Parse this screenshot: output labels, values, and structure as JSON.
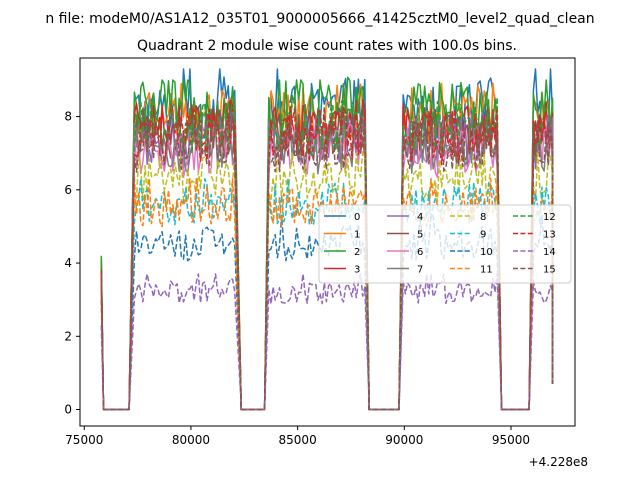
{
  "chart_data": {
    "type": "line",
    "suptitle": "n file: modeM0/AS1A12_035T01_9000005666_41425cztM0_level2_quad_clean",
    "title": "Quadrant 2 module wise count rates with 100.0s bins.",
    "xlabel": "",
    "ylabel": "",
    "x_offset_label": "+4.228e8",
    "xlim": [
      74800,
      98000
    ],
    "ylim": [
      -0.45,
      9.6
    ],
    "x_ticks": [
      75000,
      80000,
      85000,
      90000,
      95000
    ],
    "x_tick_labels": [
      "75000",
      "80000",
      "85000",
      "90000",
      "95000"
    ],
    "y_ticks": [
      0,
      2,
      4,
      6,
      8
    ],
    "y_tick_labels": [
      "0",
      "2",
      "4",
      "6",
      "8"
    ],
    "segments": [
      {
        "start": 75800,
        "drop_end": 75900,
        "zero_end": 77150,
        "rise_end": 77350,
        "high_end": 82050,
        "fall_end": 82350
      },
      {
        "start": 82350,
        "drop_end": 82350,
        "zero_end": 83450,
        "rise_end": 83650,
        "high_end": 88150,
        "fall_end": 88350
      },
      {
        "start": 88350,
        "drop_end": 88350,
        "zero_end": 89750,
        "rise_end": 89950,
        "high_end": 94350,
        "fall_end": 94550
      },
      {
        "start": 94550,
        "drop_end": 94550,
        "zero_end": 95850,
        "rise_end": 96050,
        "high_end": 96950,
        "fall_end": 96950
      }
    ],
    "series": [
      {
        "name": "0",
        "color": "#1f77b4",
        "style": "solid",
        "level": 8.1,
        "peak": 9.3,
        "start_value": 4.1
      },
      {
        "name": "1",
        "color": "#ff7f0e",
        "style": "solid",
        "level": 8.0,
        "peak": 8.9,
        "start_value": 4.0
      },
      {
        "name": "2",
        "color": "#2ca02c",
        "style": "solid",
        "level": 8.2,
        "peak": 9.0,
        "start_value": 4.2
      },
      {
        "name": "3",
        "color": "#d62728",
        "style": "solid",
        "level": 7.6,
        "peak": 8.3,
        "start_value": 3.9
      },
      {
        "name": "4",
        "color": "#9467bd",
        "style": "solid",
        "level": 7.3,
        "peak": 8.0,
        "start_value": 3.8
      },
      {
        "name": "5",
        "color": "#8c564b",
        "style": "solid",
        "level": 7.5,
        "peak": 8.1,
        "start_value": 3.8
      },
      {
        "name": "6",
        "color": "#e377c2",
        "style": "solid",
        "level": 7.0,
        "peak": 7.8,
        "start_value": 3.7
      },
      {
        "name": "7",
        "color": "#7f7f7f",
        "style": "solid",
        "level": 7.1,
        "peak": 7.8,
        "start_value": 3.7
      },
      {
        "name": "8",
        "color": "#bcbd22",
        "style": "dashed",
        "level": 6.3,
        "peak": 7.0,
        "start_value": 3.5
      },
      {
        "name": "9",
        "color": "#17becf",
        "style": "dashed",
        "level": 5.6,
        "peak": 6.3,
        "start_value": 3.3
      },
      {
        "name": "10",
        "color": "#1f77b4",
        "style": "dashed",
        "level": 4.5,
        "peak": 5.3,
        "start_value": 3.0
      },
      {
        "name": "11",
        "color": "#ff7f0e",
        "style": "dashed",
        "level": 5.5,
        "peak": 6.3,
        "start_value": 3.2
      },
      {
        "name": "12",
        "color": "#2ca02c",
        "style": "dashed",
        "level": 7.7,
        "peak": 8.4,
        "start_value": 3.9
      },
      {
        "name": "13",
        "color": "#d62728",
        "style": "dashed",
        "level": 7.4,
        "peak": 8.2,
        "start_value": 3.8
      },
      {
        "name": "14",
        "color": "#9467bd",
        "style": "dashed",
        "level": 3.2,
        "peak": 3.7,
        "start_value": 2.3
      },
      {
        "name": "15",
        "color": "#8c564b",
        "style": "dashed",
        "level": 7.2,
        "peak": 7.9,
        "start_value": 3.7
      }
    ],
    "legend": {
      "location": "center-right",
      "columns": 4,
      "entries": [
        "0",
        "1",
        "2",
        "3",
        "4",
        "5",
        "6",
        "7",
        "8",
        "9",
        "10",
        "11",
        "12",
        "13",
        "14",
        "15"
      ]
    },
    "grid": false,
    "bin_size_s": 100
  }
}
